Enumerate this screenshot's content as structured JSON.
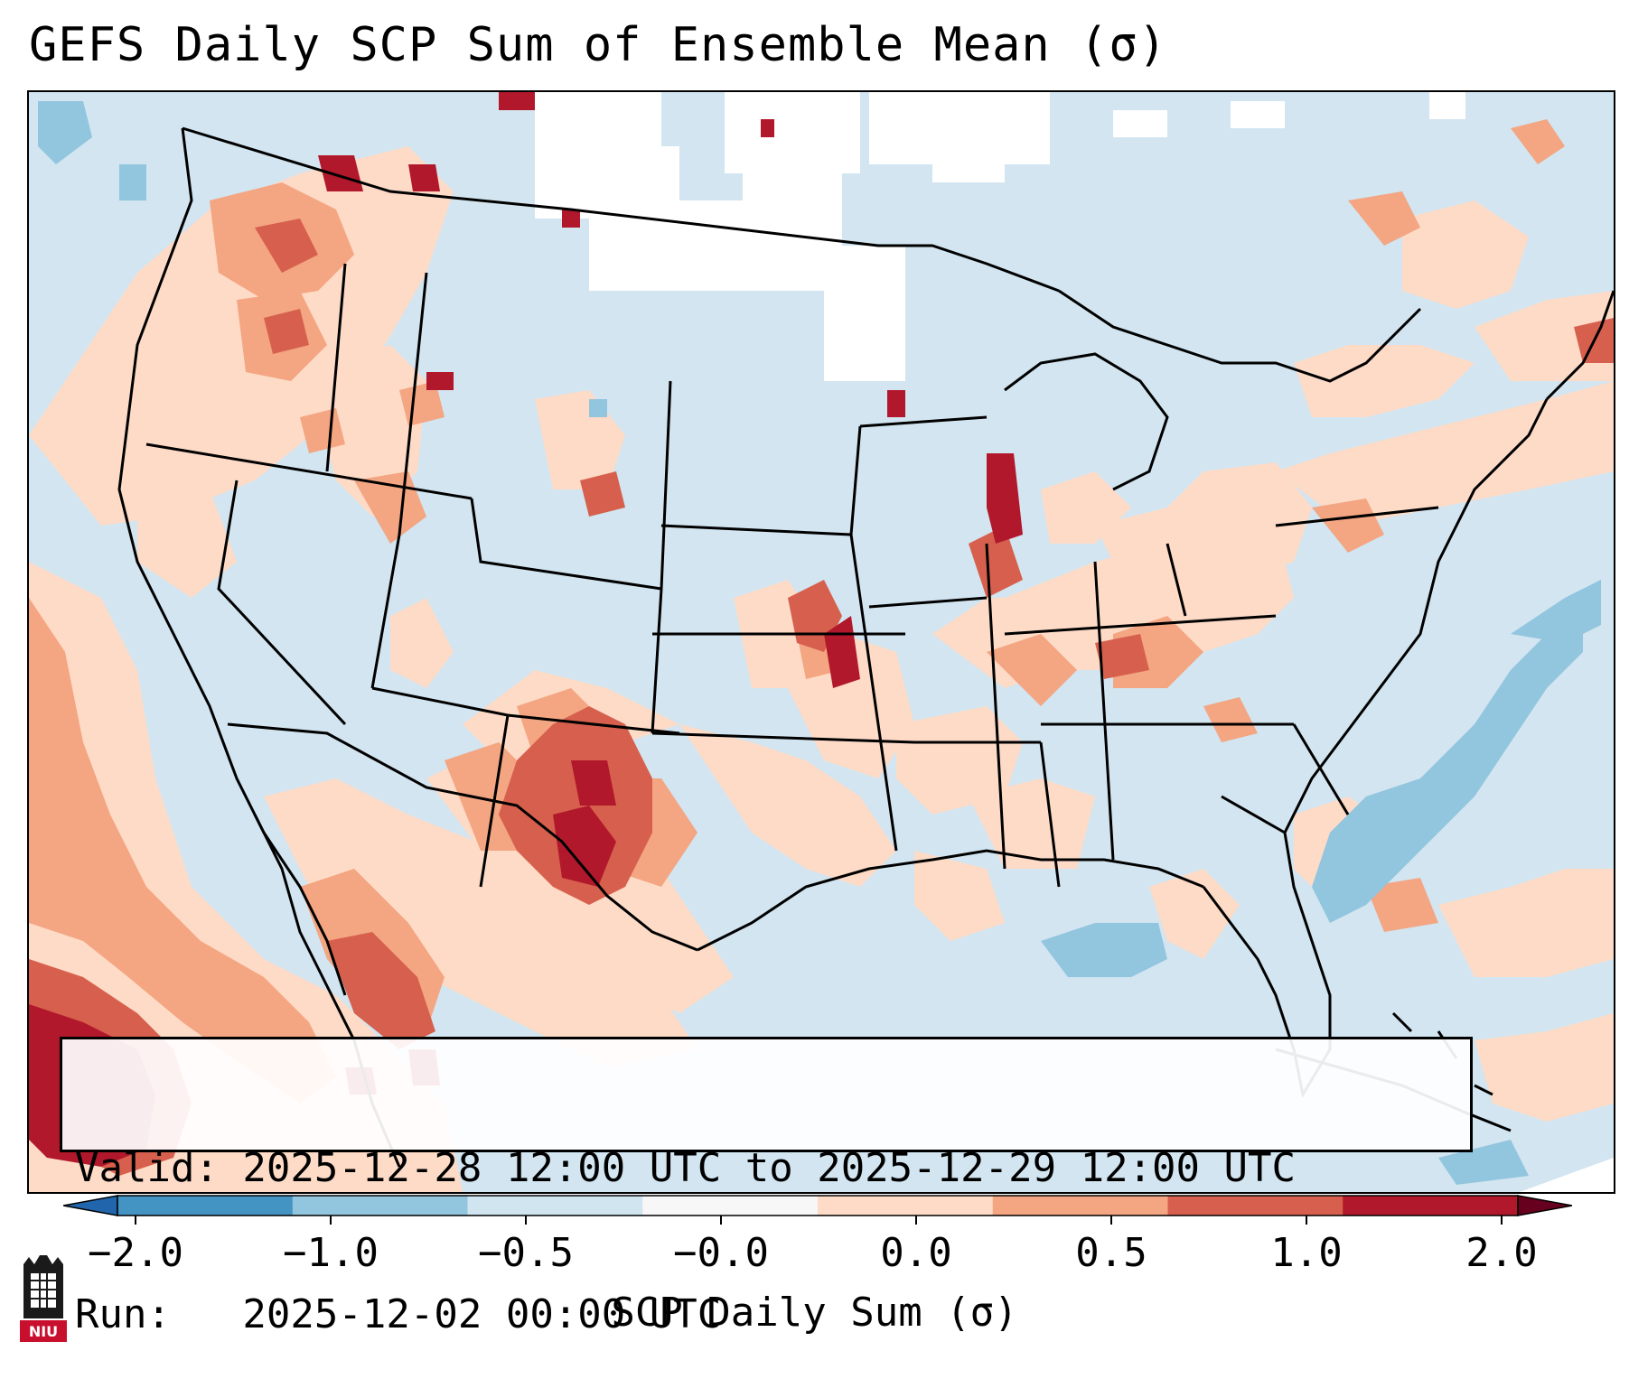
{
  "title": "GEFS Daily SCP Sum of Ensemble Mean (σ)",
  "info": {
    "valid_line": "Valid: 2025-12-28 12:00 UTC to 2025-12-29 12:00 UTC",
    "run_line": "Run:   2025-12-02 00:00 UTC"
  },
  "colorbar": {
    "label": "SCP Daily Sum (σ)",
    "tick_labels": [
      "−2.0",
      "−1.0",
      "−0.5",
      "−0.0",
      "0.0",
      "0.5",
      "1.0",
      "2.0"
    ],
    "colors": [
      "#4393c3",
      "#92c5de",
      "#d1e5f0",
      "#f7f7f7",
      "#fddbc7",
      "#f4a582",
      "#d6604d",
      "#b2182b"
    ],
    "extend": "both"
  },
  "logo": {
    "text": "NIU",
    "brand_color": "#c8102e"
  }
}
